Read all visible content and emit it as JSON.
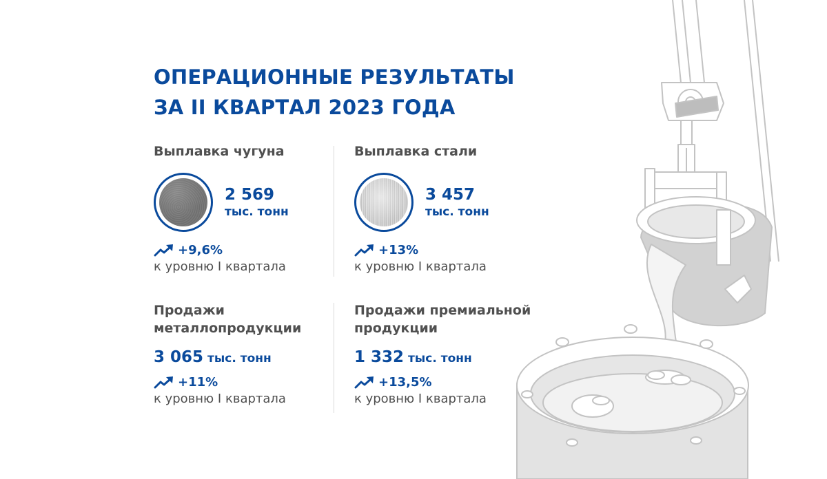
{
  "title": {
    "line1": "ОПЕРАЦИОННЫЕ РЕЗУЛЬТАТЫ",
    "line2": "ЗА II КВАРТАЛ 2023 ГОДА"
  },
  "colors": {
    "accent": "#0a4a9c",
    "text": "#505050",
    "illustration": "#c8c8c8"
  },
  "metrics": {
    "pig_iron": {
      "label": "Выплавка чугуна",
      "value": "2 569",
      "unit": "тыс. тонн",
      "growth": "+9,6%",
      "note": "к уровню I квартала",
      "icon": "pig-iron-disc-icon"
    },
    "steel": {
      "label": "Выплавка стали",
      "value": "3 457",
      "unit": "тыс. тонн",
      "growth": "+13%",
      "note": "к уровню I квартала",
      "icon": "steel-disc-icon"
    },
    "sales": {
      "label_line1": "Продажи",
      "label_line2": "металлопродукции",
      "value": "3 065",
      "unit": "тыс. тонн",
      "growth": "+11%",
      "note": "к уровню I квартала"
    },
    "premium": {
      "label_line1": "Продажи премиальной",
      "label_line2": "продукции",
      "value": "1 332",
      "unit": "тыс. тонн",
      "growth": "+13,5%",
      "note": "к уровню I квартала"
    }
  },
  "trend_icon": "trend-up-arrow-icon",
  "illustration": "ladle-pouring-metal-illustration"
}
